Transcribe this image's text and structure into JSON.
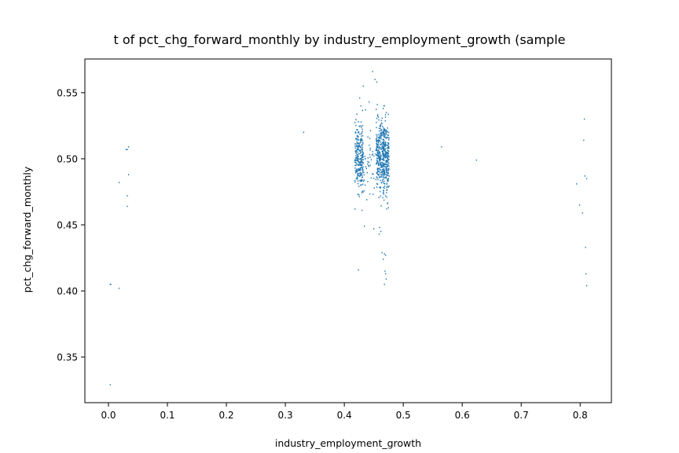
{
  "chart_data": {
    "type": "scatter",
    "title": "t of pct_chg_forward_monthly by industry_employment_growth (sample",
    "xlabel": "industry_employment_growth",
    "ylabel": "pct_chg_forward_monthly",
    "xlim": [
      -0.04,
      0.853
    ],
    "ylim": [
      0.3155,
      0.5755
    ],
    "xticks": [
      0.0,
      0.1,
      0.2,
      0.3,
      0.4,
      0.5,
      0.6,
      0.7,
      0.8
    ],
    "xtick_labels": [
      "0.0",
      "0.1",
      "0.2",
      "0.3",
      "0.4",
      "0.5",
      "0.6",
      "0.7",
      "0.8"
    ],
    "yticks": [
      0.35,
      0.4,
      0.45,
      0.5,
      0.55
    ],
    "ytick_labels": [
      "0.35",
      "0.40",
      "0.45",
      "0.50",
      "0.55"
    ],
    "grid": false,
    "point_color": "#1f77b4",
    "series": [
      {
        "x": [
          0.003,
          0.003,
          0.004,
          0.018,
          0.018,
          0.032,
          0.032,
          0.034,
          0.034,
          0.032,
          0.03,
          0.331,
          0.565,
          0.624,
          0.794,
          0.799,
          0.804,
          0.806,
          0.807,
          0.808,
          0.809,
          0.81,
          0.811,
          0.811,
          0.424,
          0.426,
          0.428,
          0.432,
          0.434,
          0.436,
          0.448,
          0.45,
          0.452,
          0.455,
          0.459,
          0.462,
          0.464,
          0.466,
          0.468,
          0.47,
          0.469,
          0.47,
          0.471,
          0.468,
          0.442,
          0.43,
          0.438,
          0.456,
          0.46
        ],
        "y": [
          0.405,
          0.329,
          0.405,
          0.482,
          0.402,
          0.507,
          0.472,
          0.509,
          0.488,
          0.464,
          0.507,
          0.52,
          0.509,
          0.499,
          0.481,
          0.465,
          0.459,
          0.514,
          0.53,
          0.487,
          0.433,
          0.413,
          0.404,
          0.485,
          0.416,
          0.546,
          0.54,
          0.555,
          0.449,
          0.537,
          0.566,
          0.447,
          0.56,
          0.558,
          0.443,
          0.445,
          0.429,
          0.424,
          0.428,
          0.427,
          0.415,
          0.413,
          0.409,
          0.405,
          0.543,
          0.461,
          0.469,
          0.541,
          0.448
        ]
      }
    ],
    "clusters": [
      {
        "x_min": 0.418,
        "x_max": 0.432,
        "y_mean": 0.502,
        "y_sd": 0.012,
        "n": 260
      },
      {
        "x_min": 0.454,
        "x_max": 0.468,
        "y_mean": 0.502,
        "y_sd": 0.013,
        "n": 260
      },
      {
        "x_min": 0.466,
        "x_max": 0.476,
        "y_mean": 0.5,
        "y_sd": 0.014,
        "n": 220
      },
      {
        "x_min": 0.43,
        "x_max": 0.47,
        "y_mean": 0.497,
        "y_sd": 0.012,
        "n": 90
      }
    ]
  }
}
